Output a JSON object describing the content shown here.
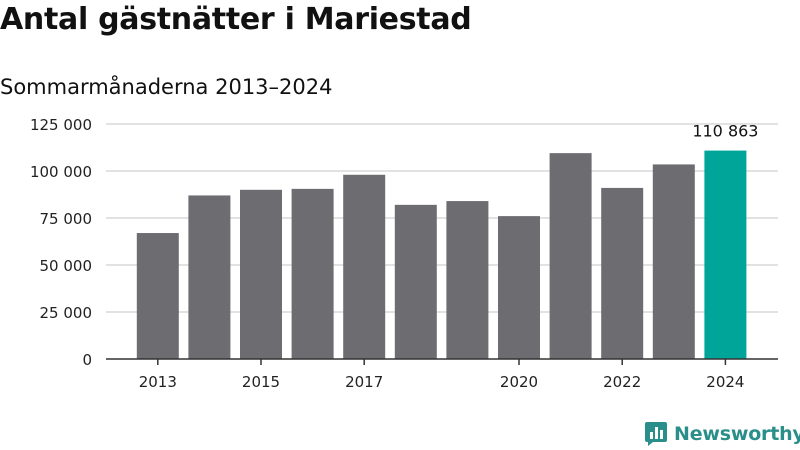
{
  "title": "Antal gästnätter i Mariestad",
  "subtitle": "Sommarmånaderna 2013–2024",
  "brand": "Newsworthy",
  "colors": {
    "bar": "#6d6c71",
    "highlight": "#00a59a",
    "grid": "#d9d9d9",
    "axis": "#333333",
    "text": "#222222"
  },
  "chart_data": {
    "type": "bar",
    "title": "Antal gästnätter i Mariestad",
    "subtitle": "Sommarmånaderna 2013–2024",
    "categories": [
      "2013",
      "2014",
      "2015",
      "2016",
      "2017",
      "2018",
      "2019",
      "2020",
      "2021",
      "2022",
      "2023",
      "2024"
    ],
    "values": [
      67000,
      87000,
      90000,
      90500,
      98000,
      82000,
      84000,
      76000,
      109500,
      91000,
      103500,
      110863
    ],
    "x_tick_labels": [
      "2013",
      "2015",
      "2017",
      "2020",
      "2022",
      "2024"
    ],
    "y_ticks": [
      0,
      25000,
      50000,
      75000,
      100000,
      125000
    ],
    "y_tick_labels": [
      "0",
      "25 000",
      "50 000",
      "75 000",
      "100 000",
      "125 000"
    ],
    "ylim": [
      0,
      125000
    ],
    "highlight_category": "2024",
    "data_labels": [
      {
        "category": "2024",
        "text": "110 863"
      }
    ],
    "xlabel": "",
    "ylabel": "",
    "grid": true,
    "legend": "none"
  }
}
